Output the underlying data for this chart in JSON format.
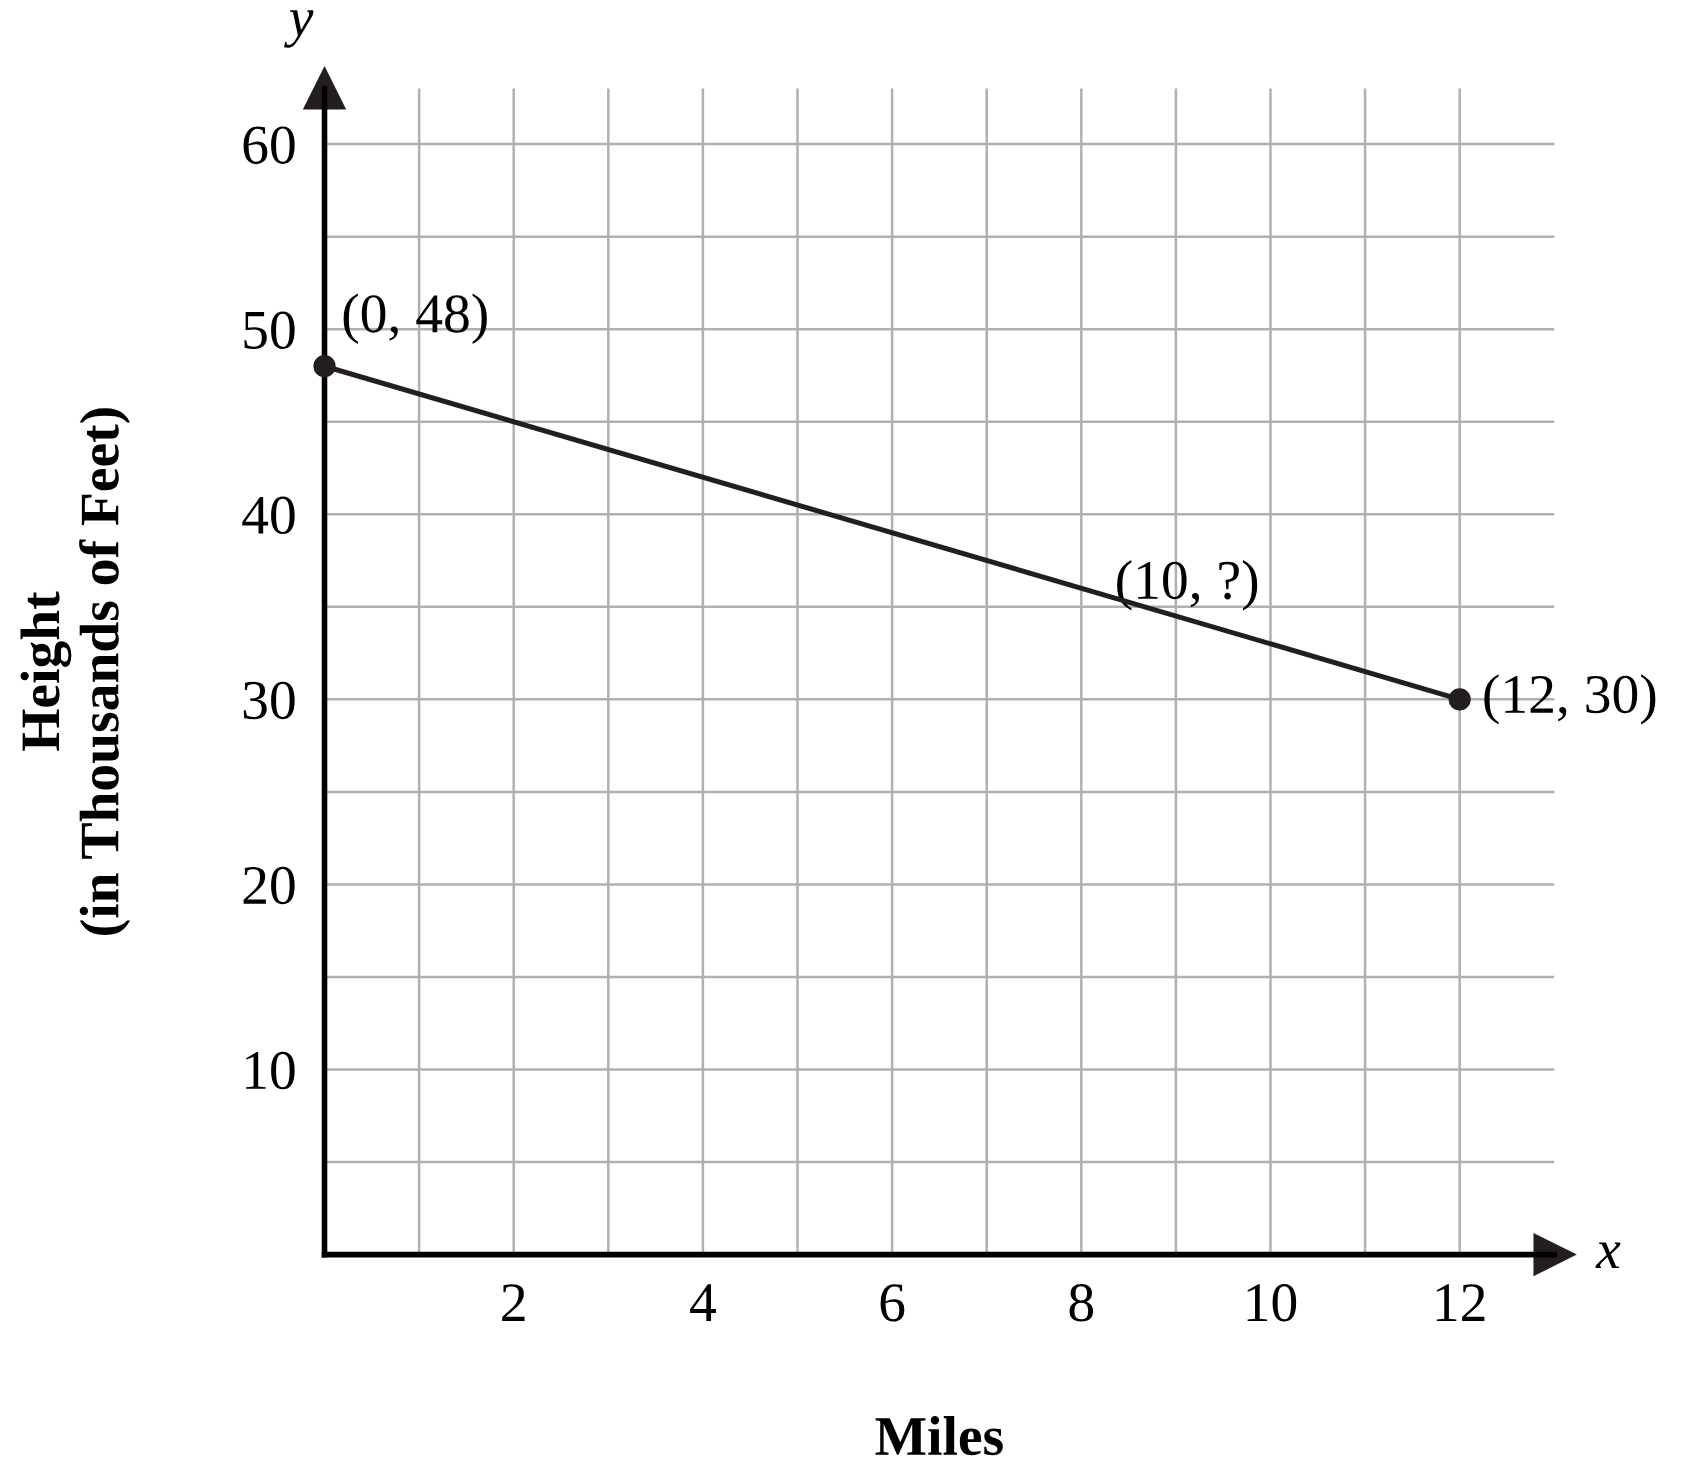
{
  "chart_data": {
    "type": "line",
    "xlabel": "Miles",
    "ylabel": "Height\n(in Thousands of Feet)",
    "x": [
      0,
      12
    ],
    "series": [
      {
        "color": "#231f20",
        "values": [
          48,
          30
        ]
      }
    ],
    "marker": "circle",
    "line_style": "solid",
    "grid": true,
    "xlim": [
      0,
      13
    ],
    "ylim": [
      0,
      63
    ],
    "xticks": [
      {
        "value": 1,
        "label": null
      },
      2,
      {
        "value": 3,
        "label": null
      },
      4,
      {
        "value": 5,
        "label": null
      },
      6,
      {
        "value": 7,
        "label": null
      },
      8,
      {
        "value": 9,
        "label": null
      },
      10,
      {
        "value": 11,
        "label": null
      },
      12
    ],
    "yticks": [
      {
        "value": 5,
        "label": null
      },
      10,
      {
        "value": 15,
        "label": null
      },
      20,
      {
        "value": 25,
        "label": null
      },
      30,
      {
        "value": 35,
        "label": null
      },
      40,
      {
        "value": 45,
        "label": null
      },
      50,
      {
        "value": 55,
        "label": null
      },
      60
    ],
    "annotations": [
      {
        "text": "(0, 48)",
        "x": 0,
        "y": 48
      },
      {
        "text": "(10, ?)",
        "x": 10,
        "y": 33
      },
      {
        "text": "(12, 30)",
        "x": 12,
        "y": 30
      },
      "y",
      "x"
    ]
  }
}
